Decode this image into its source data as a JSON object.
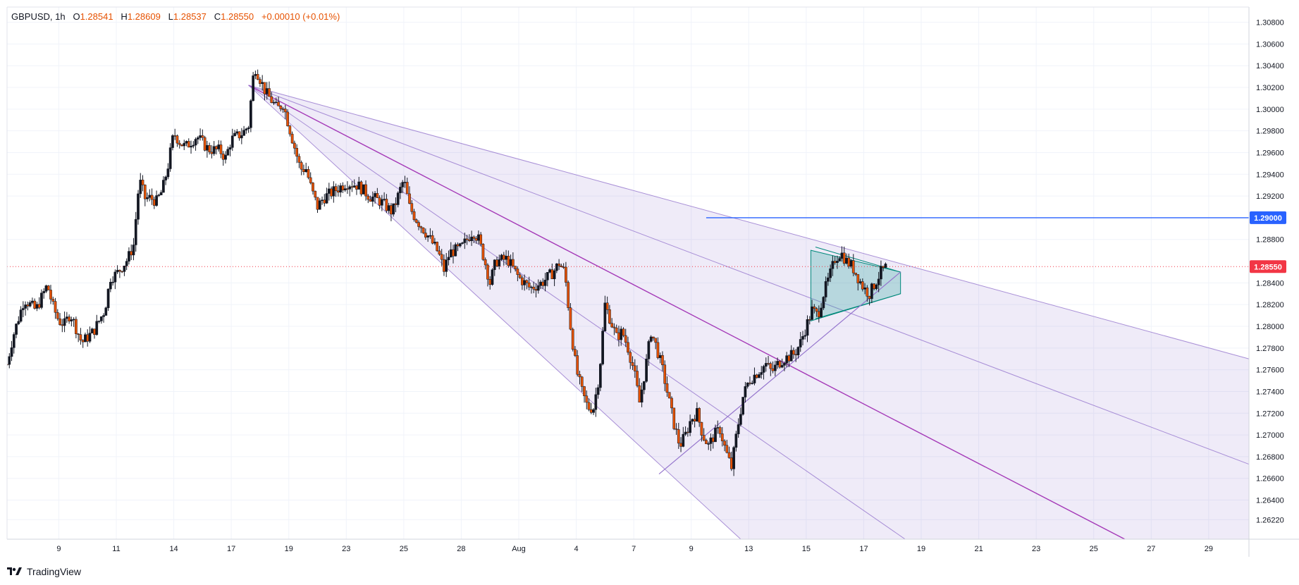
{
  "legend": {
    "symbol": "GBPUSD",
    "interval": "1h",
    "open_label": "O",
    "open": "1.28541",
    "high_label": "H",
    "high": "1.28609",
    "low_label": "L",
    "low": "1.28537",
    "close_label": "C",
    "close": "1.28550",
    "change": "+0.00010",
    "change_pct": "(+0.01%)"
  },
  "brand": {
    "name": "TradingView"
  },
  "colors": {
    "up": "#131722",
    "down": "#e65100",
    "candle_outline": "#131722",
    "grid": "#f0f3fa",
    "fan_fill": "#7e57c2",
    "fan_line": "#9575cd",
    "median_line": "#9c27b0",
    "resistance": "#2962ff",
    "pennant_fill": "#26a69a",
    "pennant_line": "#00897b",
    "last_price": "#f23645",
    "axis_text": "#131722"
  },
  "chart_data": {
    "type": "candlestick",
    "symbol": "GBPUSD",
    "interval": "1h",
    "y_range": [
      1.2604,
      1.3094
    ],
    "y_ticks": [
      "1.30800",
      "1.30600",
      "1.30400",
      "1.30200",
      "1.30000",
      "1.29800",
      "1.29600",
      "1.29400",
      "1.29200",
      "1.28800",
      "1.28400",
      "1.28200",
      "1.28000",
      "1.27800",
      "1.27600",
      "1.27400",
      "1.27200",
      "1.27000",
      "1.26800",
      "1.26600",
      "1.26400",
      "1.26220"
    ],
    "y_tick_values": [
      1.308,
      1.306,
      1.304,
      1.302,
      1.3,
      1.298,
      1.296,
      1.294,
      1.292,
      1.288,
      1.284,
      1.282,
      1.28,
      1.278,
      1.276,
      1.274,
      1.272,
      1.27,
      1.268,
      1.266,
      1.264,
      1.2622
    ],
    "x_ticks": [
      "9",
      "11",
      "14",
      "17",
      "19",
      "23",
      "25",
      "28",
      "Aug",
      "4",
      "7",
      "9",
      "13",
      "15",
      "17",
      "19",
      "21",
      "23",
      "25",
      "27",
      "29"
    ],
    "x_tick_positions": [
      3,
      8,
      13,
      18,
      23,
      28,
      33,
      38,
      43,
      48,
      53,
      58,
      63,
      68,
      73,
      78,
      83,
      88,
      93,
      98,
      103
    ],
    "x_domain": [
      -1.5,
      106.5
    ],
    "last_price": {
      "value": 1.2855,
      "label": "1.28550"
    },
    "horizontal_level": {
      "value": 1.29,
      "label": "1.29000",
      "x_start": 59.3
    },
    "price_path": [
      [
        -1.5,
        1.2765
      ],
      [
        -1.0,
        1.279
      ],
      [
        0.0,
        1.2825
      ],
      [
        1.0,
        1.2815
      ],
      [
        2.0,
        1.2838
      ],
      [
        2.5,
        1.2818
      ],
      [
        3.0,
        1.2805
      ],
      [
        3.5,
        1.2802
      ],
      [
        4.0,
        1.2812
      ],
      [
        5.0,
        1.2785
      ],
      [
        6.0,
        1.2795
      ],
      [
        7.0,
        1.2815
      ],
      [
        7.5,
        1.2845
      ],
      [
        8.0,
        1.2848
      ],
      [
        9.0,
        1.2862
      ],
      [
        9.5,
        1.2875
      ],
      [
        10.0,
        1.2935
      ],
      [
        10.5,
        1.2918
      ],
      [
        11.0,
        1.2918
      ],
      [
        11.5,
        1.2915
      ],
      [
        12.0,
        1.2925
      ],
      [
        12.5,
        1.2948
      ],
      [
        13.0,
        1.2978
      ],
      [
        13.5,
        1.297
      ],
      [
        14.0,
        1.2965
      ],
      [
        15.0,
        1.2975
      ],
      [
        16.0,
        1.2963
      ],
      [
        17.0,
        1.2962
      ],
      [
        17.5,
        1.2955
      ],
      [
        18.0,
        1.2972
      ],
      [
        19.0,
        1.2978
      ],
      [
        19.5,
        1.2985
      ],
      [
        20.0,
        1.304
      ],
      [
        20.5,
        1.3028
      ],
      [
        21.0,
        1.3015
      ],
      [
        21.5,
        1.3008
      ],
      [
        22.0,
        1.3
      ],
      [
        22.5,
        1.3005
      ],
      [
        23.0,
        1.2985
      ],
      [
        23.5,
        1.2965
      ],
      [
        24.0,
        1.2945
      ],
      [
        24.5,
        1.2945
      ],
      [
        25.0,
        1.2925
      ],
      [
        25.5,
        1.291
      ],
      [
        26.0,
        1.2918
      ],
      [
        27.0,
        1.2925
      ],
      [
        28.0,
        1.2932
      ],
      [
        29.0,
        1.293
      ],
      [
        30.0,
        1.292
      ],
      [
        31.0,
        1.2915
      ],
      [
        32.0,
        1.2905
      ],
      [
        33.0,
        1.2935
      ],
      [
        33.5,
        1.291
      ],
      [
        34.0,
        1.29
      ],
      [
        35.0,
        1.2885
      ],
      [
        36.0,
        1.2868
      ],
      [
        36.5,
        1.2852
      ],
      [
        37.0,
        1.2868
      ],
      [
        38.0,
        1.2872
      ],
      [
        39.0,
        1.2888
      ],
      [
        39.5,
        1.288
      ],
      [
        40.0,
        1.2862
      ],
      [
        40.5,
        1.284
      ],
      [
        41.0,
        1.286
      ],
      [
        42.0,
        1.2862
      ],
      [
        43.0,
        1.2845
      ],
      [
        44.0,
        1.2835
      ],
      [
        45.0,
        1.284
      ],
      [
        46.0,
        1.285
      ],
      [
        46.5,
        1.2858
      ],
      [
        47.0,
        1.285
      ],
      [
        47.5,
        1.28
      ],
      [
        48.0,
        1.276
      ],
      [
        48.5,
        1.274
      ],
      [
        49.0,
        1.2725
      ],
      [
        49.5,
        1.2725
      ],
      [
        50.0,
        1.2755
      ],
      [
        50.5,
        1.282
      ],
      [
        51.0,
        1.2805
      ],
      [
        51.5,
        1.279
      ],
      [
        52.0,
        1.2795
      ],
      [
        52.5,
        1.278
      ],
      [
        53.0,
        1.276
      ],
      [
        53.5,
        1.273
      ],
      [
        54.0,
        1.276
      ],
      [
        54.5,
        1.2795
      ],
      [
        55.0,
        1.278
      ],
      [
        55.5,
        1.276
      ],
      [
        56.0,
        1.2735
      ],
      [
        56.5,
        1.271
      ],
      [
        57.0,
        1.269
      ],
      [
        57.5,
        1.27
      ],
      [
        58.0,
        1.2715
      ],
      [
        58.5,
        1.272
      ],
      [
        59.0,
        1.27
      ],
      [
        59.5,
        1.269
      ],
      [
        60.0,
        1.27
      ],
      [
        60.5,
        1.2705
      ],
      [
        61.0,
        1.2685
      ],
      [
        61.5,
        1.267
      ],
      [
        62.0,
        1.2705
      ],
      [
        62.5,
        1.2735
      ],
      [
        63.0,
        1.275
      ],
      [
        63.5,
        1.2755
      ],
      [
        64.0,
        1.276
      ],
      [
        64.5,
        1.2765
      ],
      [
        65.0,
        1.2758
      ],
      [
        65.5,
        1.2765
      ],
      [
        66.0,
        1.277
      ],
      [
        66.5,
        1.2772
      ],
      [
        67.0,
        1.2775
      ],
      [
        67.5,
        1.2785
      ],
      [
        68.0,
        1.28
      ],
      [
        68.5,
        1.2815
      ],
      [
        69.0,
        1.281
      ],
      [
        69.5,
        1.283
      ],
      [
        70.0,
        1.2845
      ],
      [
        70.5,
        1.2862
      ],
      [
        71.0,
        1.2868
      ],
      [
        71.5,
        1.286
      ],
      [
        72.0,
        1.2855
      ],
      [
        72.5,
        1.2845
      ],
      [
        73.0,
        1.2835
      ],
      [
        73.5,
        1.283
      ],
      [
        74.0,
        1.284
      ],
      [
        74.5,
        1.285
      ],
      [
        75.0,
        1.2855
      ]
    ],
    "pitchfan": {
      "origin": [
        19.5,
        1.3022
      ],
      "lines": [
        {
          "role": "upper",
          "to": [
            111.0,
            1.2757
          ]
        },
        {
          "role": "inner-upper",
          "to": [
            111.0,
            1.2655
          ]
        },
        {
          "role": "median",
          "to": [
            95.7,
            1.2604
          ]
        },
        {
          "role": "inner-lower",
          "to": [
            76.6,
            1.2604
          ]
        },
        {
          "role": "lower",
          "to": [
            62.3,
            1.2604
          ]
        }
      ]
    },
    "trendline": {
      "from": [
        55.2,
        1.2664
      ],
      "to": [
        76.2,
        1.285
      ]
    },
    "pennant": {
      "points": [
        [
          68.4,
          1.287
        ],
        [
          76.2,
          1.285
        ],
        [
          76.2,
          1.283
        ],
        [
          68.4,
          1.2805
        ]
      ],
      "upper_start": [
        68.8,
        1.2873
      ],
      "lower_start": [
        68.8,
        1.2807
      ]
    }
  }
}
